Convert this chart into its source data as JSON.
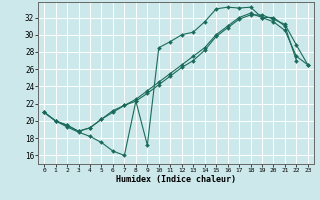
{
  "bg_color": "#cce8ea",
  "line_color": "#1a6b5a",
  "xlim": [
    -0.5,
    23.5
  ],
  "ylim": [
    15.0,
    33.8
  ],
  "yticks": [
    16,
    18,
    20,
    22,
    24,
    26,
    28,
    30,
    32
  ],
  "xticks": [
    0,
    1,
    2,
    3,
    4,
    5,
    6,
    7,
    8,
    9,
    10,
    11,
    12,
    13,
    14,
    15,
    16,
    17,
    18,
    19,
    20,
    21,
    22,
    23
  ],
  "xlabel": "Humidex (Indice chaleur)",
  "line1_x": [
    0,
    1,
    2,
    3,
    4,
    5,
    6,
    7,
    8,
    9,
    10,
    11,
    12,
    13,
    14,
    15,
    16,
    17,
    18,
    19,
    20,
    21,
    22
  ],
  "line1_y": [
    21.0,
    20.0,
    19.3,
    18.7,
    18.2,
    17.5,
    16.5,
    16.0,
    22.3,
    17.2,
    28.5,
    29.2,
    30.0,
    30.3,
    31.5,
    33.0,
    33.2,
    33.1,
    33.2,
    32.0,
    32.0,
    31.0,
    27.0
  ],
  "line2_x": [
    0,
    1,
    2,
    3,
    4,
    5,
    6,
    7,
    8,
    9,
    10,
    11,
    12,
    13,
    14,
    15,
    16,
    17,
    18,
    19,
    20,
    21,
    22,
    23
  ],
  "line2_y": [
    21.0,
    20.0,
    19.5,
    18.8,
    19.2,
    20.2,
    21.2,
    21.8,
    22.3,
    23.2,
    24.2,
    25.2,
    26.2,
    27.0,
    28.2,
    29.8,
    30.8,
    31.8,
    32.3,
    32.3,
    31.8,
    31.2,
    28.8,
    26.5
  ],
  "line3_x": [
    0,
    1,
    2,
    3,
    4,
    5,
    6,
    7,
    8,
    9,
    10,
    11,
    12,
    13,
    14,
    15,
    16,
    17,
    18,
    19,
    20,
    21,
    22,
    23
  ],
  "line3_y": [
    21.0,
    20.0,
    19.5,
    18.8,
    19.2,
    20.2,
    21.0,
    21.8,
    22.5,
    23.5,
    24.5,
    25.5,
    26.5,
    27.5,
    28.5,
    30.0,
    31.0,
    32.0,
    32.5,
    32.0,
    31.5,
    30.5,
    27.5,
    26.5
  ]
}
